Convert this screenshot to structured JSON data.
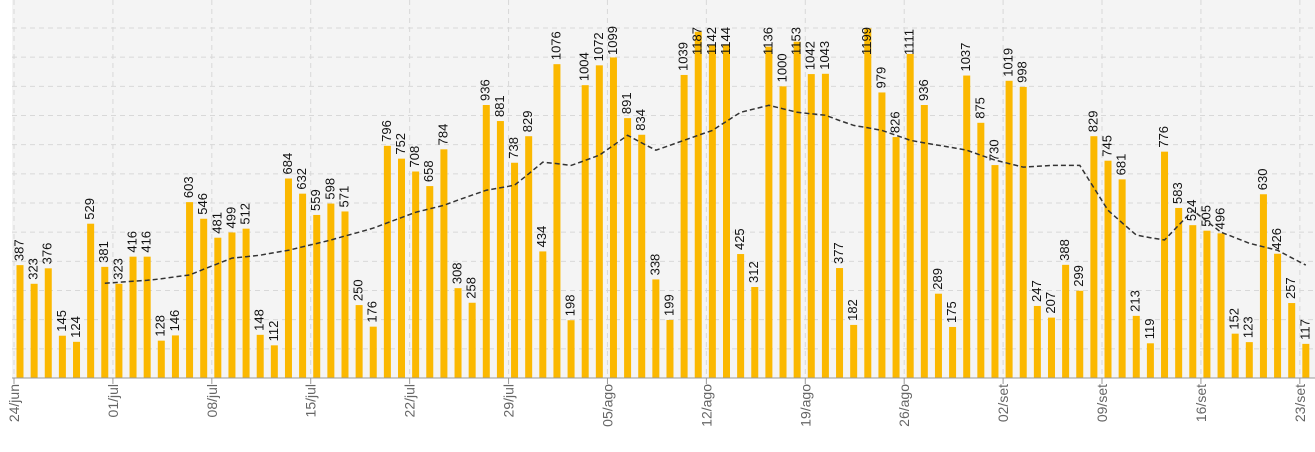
{
  "chart_data": {
    "type": "bar",
    "categories": [
      "24/jun",
      null,
      null,
      null,
      null,
      null,
      null,
      "01/jul",
      null,
      null,
      null,
      null,
      null,
      null,
      "08/jul",
      null,
      null,
      null,
      null,
      null,
      null,
      "15/jul",
      null,
      null,
      null,
      null,
      null,
      null,
      "22/jul",
      null,
      null,
      null,
      null,
      null,
      null,
      "29/jul",
      null,
      null,
      null,
      null,
      null,
      null,
      "05/ago",
      null,
      null,
      null,
      null,
      null,
      null,
      "12/ago",
      null,
      null,
      null,
      null,
      null,
      null,
      "19/ago",
      null,
      null,
      null,
      null,
      null,
      null,
      "26/ago",
      null,
      null,
      null,
      null,
      null,
      null,
      "02/set",
      null,
      null,
      null,
      null,
      null,
      null,
      "09/set",
      null,
      null,
      null,
      null,
      null,
      null,
      "16/set",
      null,
      null,
      null,
      null,
      null,
      null,
      "23/set"
    ],
    "values": [
      387,
      323,
      376,
      145,
      124,
      529,
      381,
      323,
      416,
      416,
      128,
      146,
      603,
      546,
      481,
      499,
      512,
      148,
      112,
      684,
      632,
      559,
      598,
      571,
      250,
      176,
      796,
      752,
      708,
      658,
      784,
      308,
      258,
      936,
      881,
      738,
      829,
      434,
      1076,
      198,
      1004,
      1072,
      1099,
      891,
      834,
      338,
      199,
      1039,
      1187,
      1142,
      1144,
      425,
      312,
      1136,
      1000,
      1153,
      1042,
      1043,
      377,
      182,
      1199,
      979,
      826,
      1111,
      936,
      289,
      175,
      1037,
      875,
      730,
      1019,
      998,
      247,
      207,
      388,
      299,
      829,
      745,
      681,
      213,
      119,
      776,
      583,
      524,
      505,
      496,
      152,
      123,
      630,
      426,
      257,
      117
    ],
    "color": "#fbb800",
    "series": [
      {
        "color": "#333333",
        "values": [
          null,
          null,
          null,
          null,
          null,
          null,
          325,
          328,
          332,
          335,
          340,
          347,
          353,
          373,
          392,
          411,
          416,
          421,
          430,
          438,
          450,
          461,
          473,
          487,
          500,
          514,
          532,
          550,
          568,
          580,
          592,
          610,
          627,
          644,
          652,
          661,
          700,
          740,
          735,
          729,
          746,
          764,
          798,
          832,
          806,
          781,
          798,
          815,
          832,
          849,
          880,
          911,
          923,
          935,
          923,
          911,
          906,
          901,
          883,
          866,
          858,
          849,
          832,
          815,
          806,
          798,
          790,
          781,
          764,
          747,
          735,
          723,
          726,
          729,
          729,
          729,
          652,
          575,
          532,
          490,
          481,
          473,
          524,
          575,
          537,
          500,
          481,
          462,
          450,
          438,
          412,
          387
        ]
      }
    ],
    "ylim": [
      0,
      1200
    ],
    "yticks": [
      100,
      200,
      300,
      400,
      500,
      600,
      700,
      800,
      900,
      1000,
      1100,
      1200
    ],
    "grid": true
  }
}
